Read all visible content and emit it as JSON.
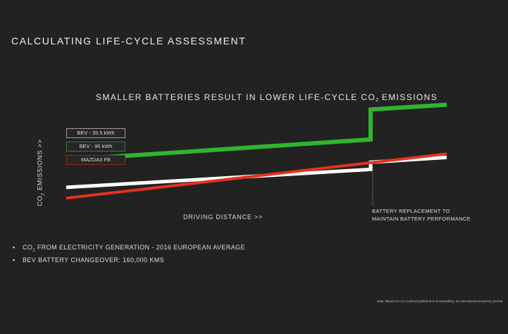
{
  "slide_title": "CALCULATING LIFE-CYCLE ASSESSMENT",
  "chart_data": {
    "type": "line",
    "title": "SMALLER BATTERIES RESULT IN LOWER LIFE-CYCLE CO2 EMISSIONS",
    "title_parts": {
      "pre": "SMALLER BATTERIES RESULT IN LOWER LIFE-CYCLE CO",
      "sub": "2",
      "post": " EMISSIONS"
    },
    "ylabel": "CO2 EMISSIONS >>",
    "ylabel_parts": {
      "pre": "CO",
      "sub": "2",
      "post": " EMISSIONS >>"
    },
    "xlabel": "DRIVING DISTANCE >>",
    "x_ticks": [],
    "y_ticks": [],
    "ylim": [
      0,
      100
    ],
    "xlim": [
      0,
      100
    ],
    "legend_position": "left",
    "grid": false,
    "series": [
      {
        "name": "BEV - 35.5 kWh",
        "color": "#ffffff",
        "x": [
          0,
          80,
          80,
          100
        ],
        "y": [
          23,
          38,
          44,
          48
        ]
      },
      {
        "name": "BEV - 95 kWh",
        "color": "#2fb52f",
        "x": [
          0,
          80,
          80,
          100
        ],
        "y": [
          46,
          63,
          88,
          92
        ]
      },
      {
        "name": "MAZDA3 FB",
        "color": "#e5321f",
        "x": [
          0,
          100
        ],
        "y": [
          14,
          51
        ]
      }
    ],
    "annotation": [
      "BATTERY REPLACEMENT TO",
      "MAINTAIN BATTERY PERFORMANCE"
    ],
    "annotation_x": 80
  },
  "bullets": [
    {
      "pre": "CO",
      "sub": "2",
      "post": " FROM ELECTRICITY GENERATION - 2016 EUROPEAN AVERAGE"
    },
    {
      "pre": "BEV BATTERY CHANGEOVER: 160,000 KMS",
      "sub": "",
      "post": ""
    }
  ],
  "note": "Note: Based on LCA method published in Sustainability, an international academic journal"
}
